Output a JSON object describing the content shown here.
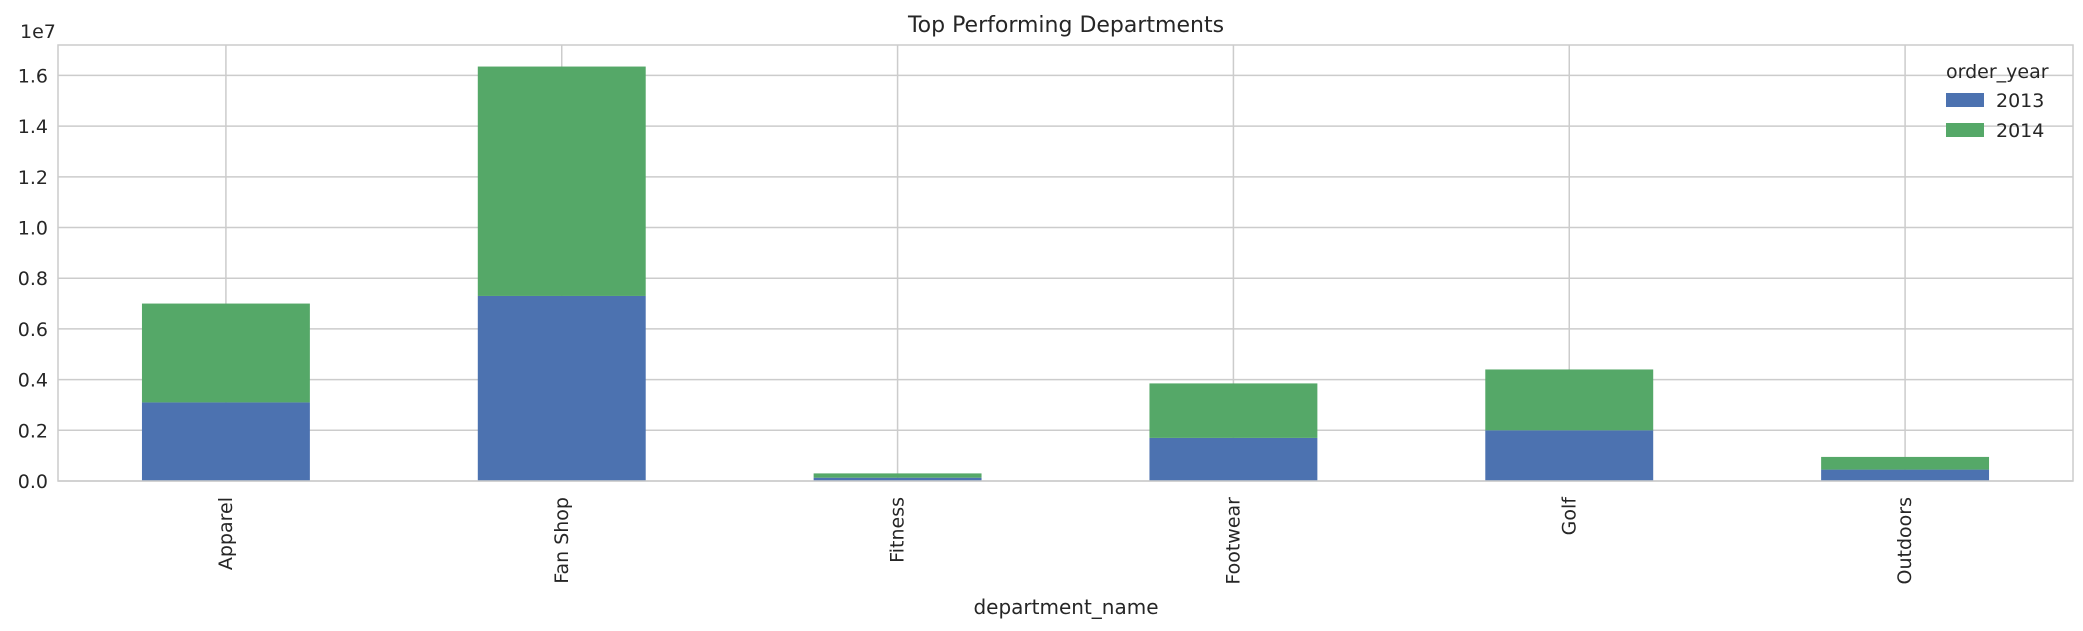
{
  "chart_data": {
    "type": "bar",
    "stacked": true,
    "title": "Top Performing Departments",
    "xlabel": "department_name",
    "ylabel": "",
    "y_offset_text": "1e7",
    "categories": [
      "Apparel",
      "Fan Shop",
      "Fitness",
      "Footwear",
      "Golf",
      "Outdoors"
    ],
    "series": [
      {
        "name": "2013",
        "color": "#4c72b0",
        "values": [
          3100000,
          7300000,
          130000,
          1700000,
          2000000,
          450000
        ]
      },
      {
        "name": "2014",
        "color": "#55a868",
        "values": [
          3900000,
          9050000,
          170000,
          2150000,
          2400000,
          500000
        ]
      }
    ],
    "ylim": [
      0,
      17200000
    ],
    "yticks": [
      0,
      2000000,
      4000000,
      6000000,
      8000000,
      10000000,
      12000000,
      14000000,
      16000000
    ],
    "ytick_labels": [
      "0.0",
      "0.2",
      "0.4",
      "0.6",
      "0.8",
      "1.0",
      "1.2",
      "1.4",
      "1.6"
    ],
    "legend": {
      "title": "order_year",
      "placement": "top-right"
    },
    "grid": true
  }
}
